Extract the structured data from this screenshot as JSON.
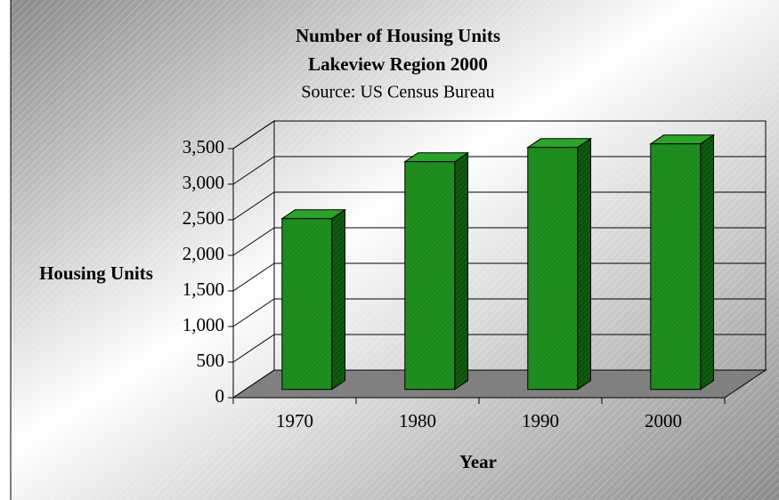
{
  "chart_data": {
    "type": "bar3d",
    "title": "Number of Housing Units",
    "subtitle": "Lakeview Region 2000",
    "source": "Source: US Census Bureau",
    "x_label": "Year",
    "y_label": "Housing Units",
    "categories": [
      "1970",
      "1980",
      "1990",
      "2000"
    ],
    "values": [
      2400,
      3200,
      3400,
      3450
    ],
    "color": "#1f8f1f",
    "ylim": [
      0,
      3500
    ],
    "yticks": [
      0,
      500,
      {
        "value": 1000,
        "label": "1,000"
      },
      {
        "value": 1500,
        "label": "1,500"
      },
      {
        "value": 2000,
        "label": "2,000"
      },
      {
        "value": 2500,
        "label": "2,500"
      },
      {
        "value": 3000,
        "label": "3,000"
      },
      {
        "value": 3500,
        "label": "3,500"
      }
    ],
    "grid": true
  }
}
